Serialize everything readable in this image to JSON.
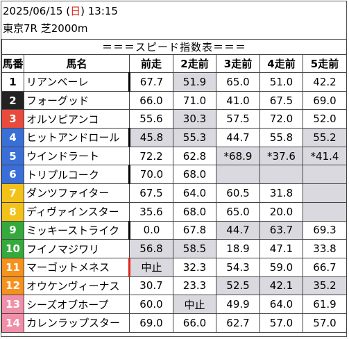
{
  "header": {
    "date": "2025/06/15",
    "weekday_open": " (",
    "weekday": "日",
    "weekday_close": ") ",
    "time": "13:15",
    "race": "東京7R 芝2000m"
  },
  "table_title": "＝＝＝スピード指数表＝＝＝",
  "columns": [
    "馬番",
    "馬名",
    "前走",
    "2走前",
    "3走前",
    "4走前",
    "5走前"
  ],
  "colors": {
    "1": "#ffffff",
    "2": "#222222",
    "3": "#e84a3c",
    "4": "#3a6fd8",
    "5": "#3a6fd8",
    "6": "#3a6fd8",
    "7": "#f2c21a",
    "8": "#f2c21a",
    "9": "#36a93c",
    "10": "#36a93c",
    "11": "#f5921e",
    "12": "#f5921e",
    "13": "#f28fa8",
    "14": "#f28fa8",
    "gray_cell": "#d9d9df"
  },
  "rows": [
    {
      "no": "1",
      "name": "リアンベーレ",
      "v": [
        "67.7",
        "51.9",
        "65.0",
        "51.0",
        "42.2"
      ]
    },
    {
      "no": "2",
      "name": "フォーグッド",
      "v": [
        "66.0",
        "71.0",
        "41.0",
        "67.5",
        "69.0"
      ]
    },
    {
      "no": "3",
      "name": "オルソピアンコ",
      "v": [
        "55.6",
        "30.3",
        "57.5",
        "72.0",
        "52.0"
      ]
    },
    {
      "no": "4",
      "name": "ヒットアンドロール",
      "v": [
        "45.8",
        "55.3",
        "44.7",
        "55.8",
        "55.2"
      ]
    },
    {
      "no": "5",
      "name": "ウインドラート",
      "v": [
        "72.2",
        "62.8",
        "*68.9",
        "*37.6",
        "*41.4"
      ]
    },
    {
      "no": "6",
      "name": "トリプルコーク",
      "v": [
        "70.0",
        "68.0",
        "",
        "",
        ""
      ]
    },
    {
      "no": "7",
      "name": "ダンツファイター",
      "v": [
        "67.5",
        "64.0",
        "60.5",
        "31.8",
        ""
      ]
    },
    {
      "no": "8",
      "name": "ディヴァインスター",
      "v": [
        "35.6",
        "68.0",
        "65.0",
        "20.0",
        ""
      ]
    },
    {
      "no": "9",
      "name": "ミッキーストライク",
      "v": [
        "0.0",
        "67.8",
        "44.7",
        "63.7",
        "69.3"
      ]
    },
    {
      "no": "10",
      "name": "フイノマジワリ",
      "v": [
        "56.8",
        "58.5",
        "18.9",
        "47.1",
        "33.8"
      ]
    },
    {
      "no": "11",
      "name": "マーゴットメネス",
      "v": [
        "中止",
        "32.3",
        "54.3",
        "59.0",
        "66.7"
      ]
    },
    {
      "no": "12",
      "name": "オウケンヴィーナス",
      "v": [
        "30.7",
        "23.3",
        "52.5",
        "42.1",
        "35.2"
      ]
    },
    {
      "no": "13",
      "name": "シーズオブホープ",
      "v": [
        "60.0",
        "中止",
        "49.9",
        "64.0",
        "61.9"
      ]
    },
    {
      "no": "14",
      "name": "カレンラップスター",
      "v": [
        "69.0",
        "66.0",
        "62.7",
        "57.0",
        "57.0"
      ]
    }
  ]
}
